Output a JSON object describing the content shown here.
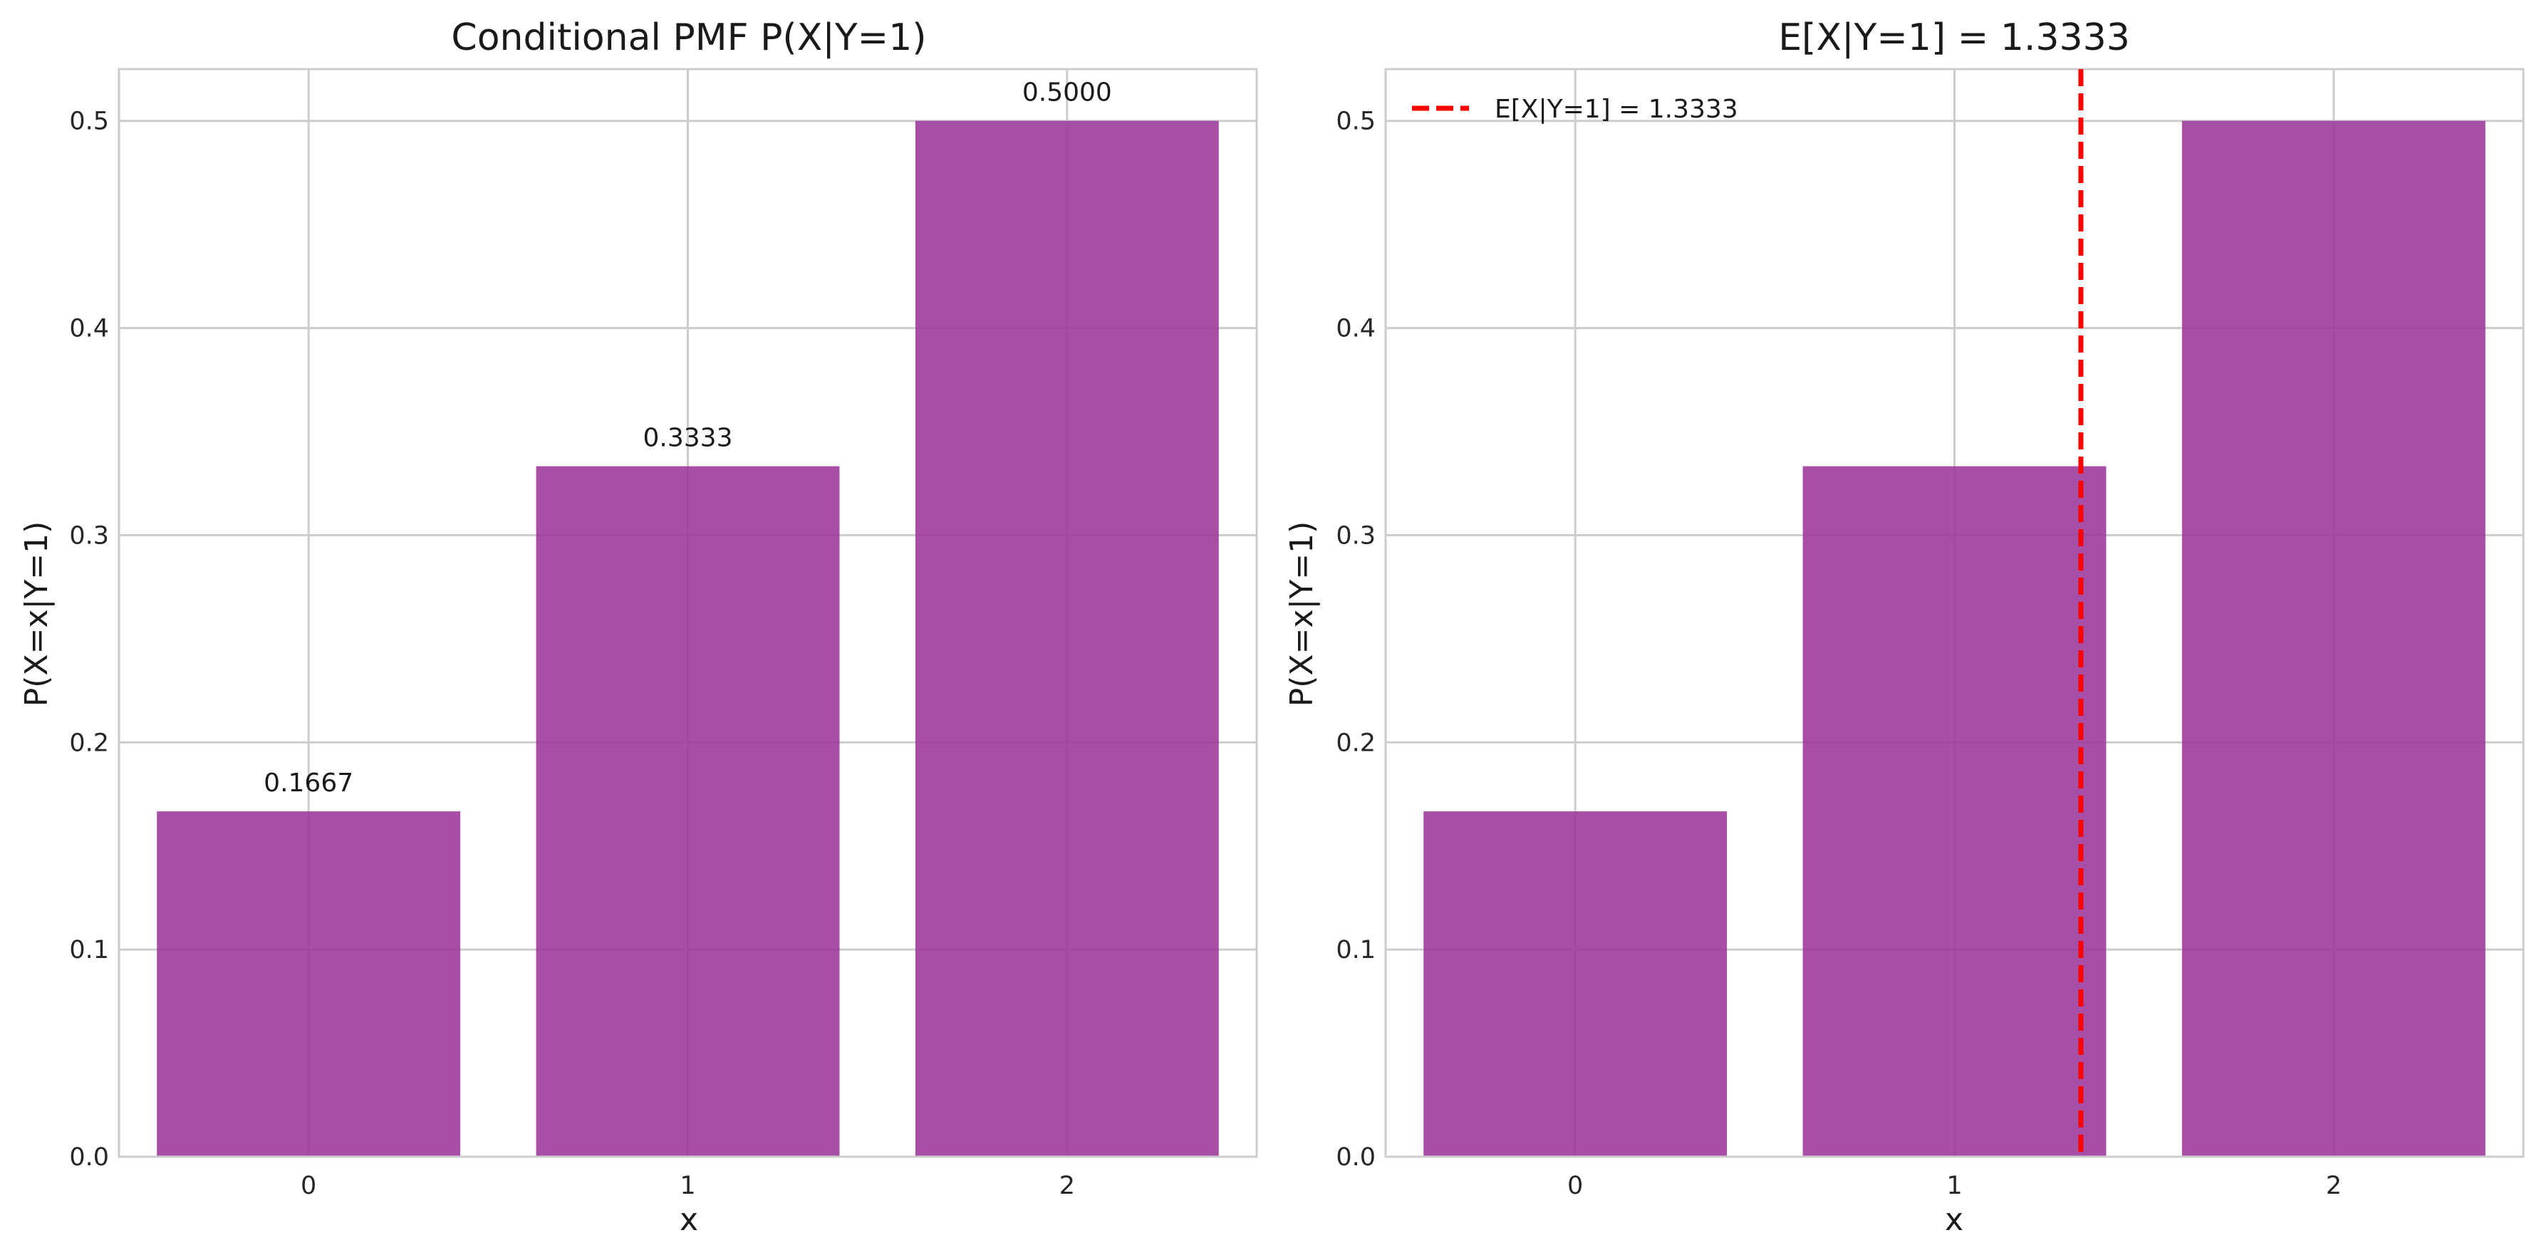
{
  "colors": {
    "bar": "#9b359b",
    "mean_line": "#ff0000",
    "grid": "#cccccc"
  },
  "chart_data": [
    {
      "type": "bar",
      "title": "Conditional PMF P(X|Y=1)",
      "xlabel": "x",
      "ylabel": "P(X=x|Y=1)",
      "categories": [
        "0",
        "1",
        "2"
      ],
      "x": [
        0,
        1,
        2
      ],
      "values": [
        0.1667,
        0.3333,
        0.5
      ],
      "value_labels": [
        "0.1667",
        "0.3333",
        "0.5000"
      ],
      "xlim": [
        -0.5,
        2.5
      ],
      "ylim": [
        0,
        0.525
      ],
      "yticks": [
        "0.0",
        "0.1",
        "0.2",
        "0.3",
        "0.4",
        "0.5"
      ],
      "ytick_values": [
        0,
        0.1,
        0.2,
        0.3,
        0.4,
        0.5
      ],
      "grid": true,
      "legend": null
    },
    {
      "type": "bar",
      "title": "E[X|Y=1] = 1.3333",
      "xlabel": "x",
      "ylabel": "P(X=x|Y=1)",
      "categories": [
        "0",
        "1",
        "2"
      ],
      "x": [
        0,
        1,
        2
      ],
      "values": [
        0.1667,
        0.3333,
        0.5
      ],
      "xlim": [
        -0.5,
        2.5
      ],
      "ylim": [
        0,
        0.525
      ],
      "yticks": [
        "0.0",
        "0.1",
        "0.2",
        "0.3",
        "0.4",
        "0.5"
      ],
      "ytick_values": [
        0,
        0.1,
        0.2,
        0.3,
        0.4,
        0.5
      ],
      "grid": true,
      "vline": {
        "x": 1.3333,
        "style": "dashed",
        "label": "E[X|Y=1] = 1.3333"
      },
      "legend": {
        "entries": [
          "E[X|Y=1] = 1.3333"
        ],
        "placement": "top-left"
      }
    }
  ]
}
